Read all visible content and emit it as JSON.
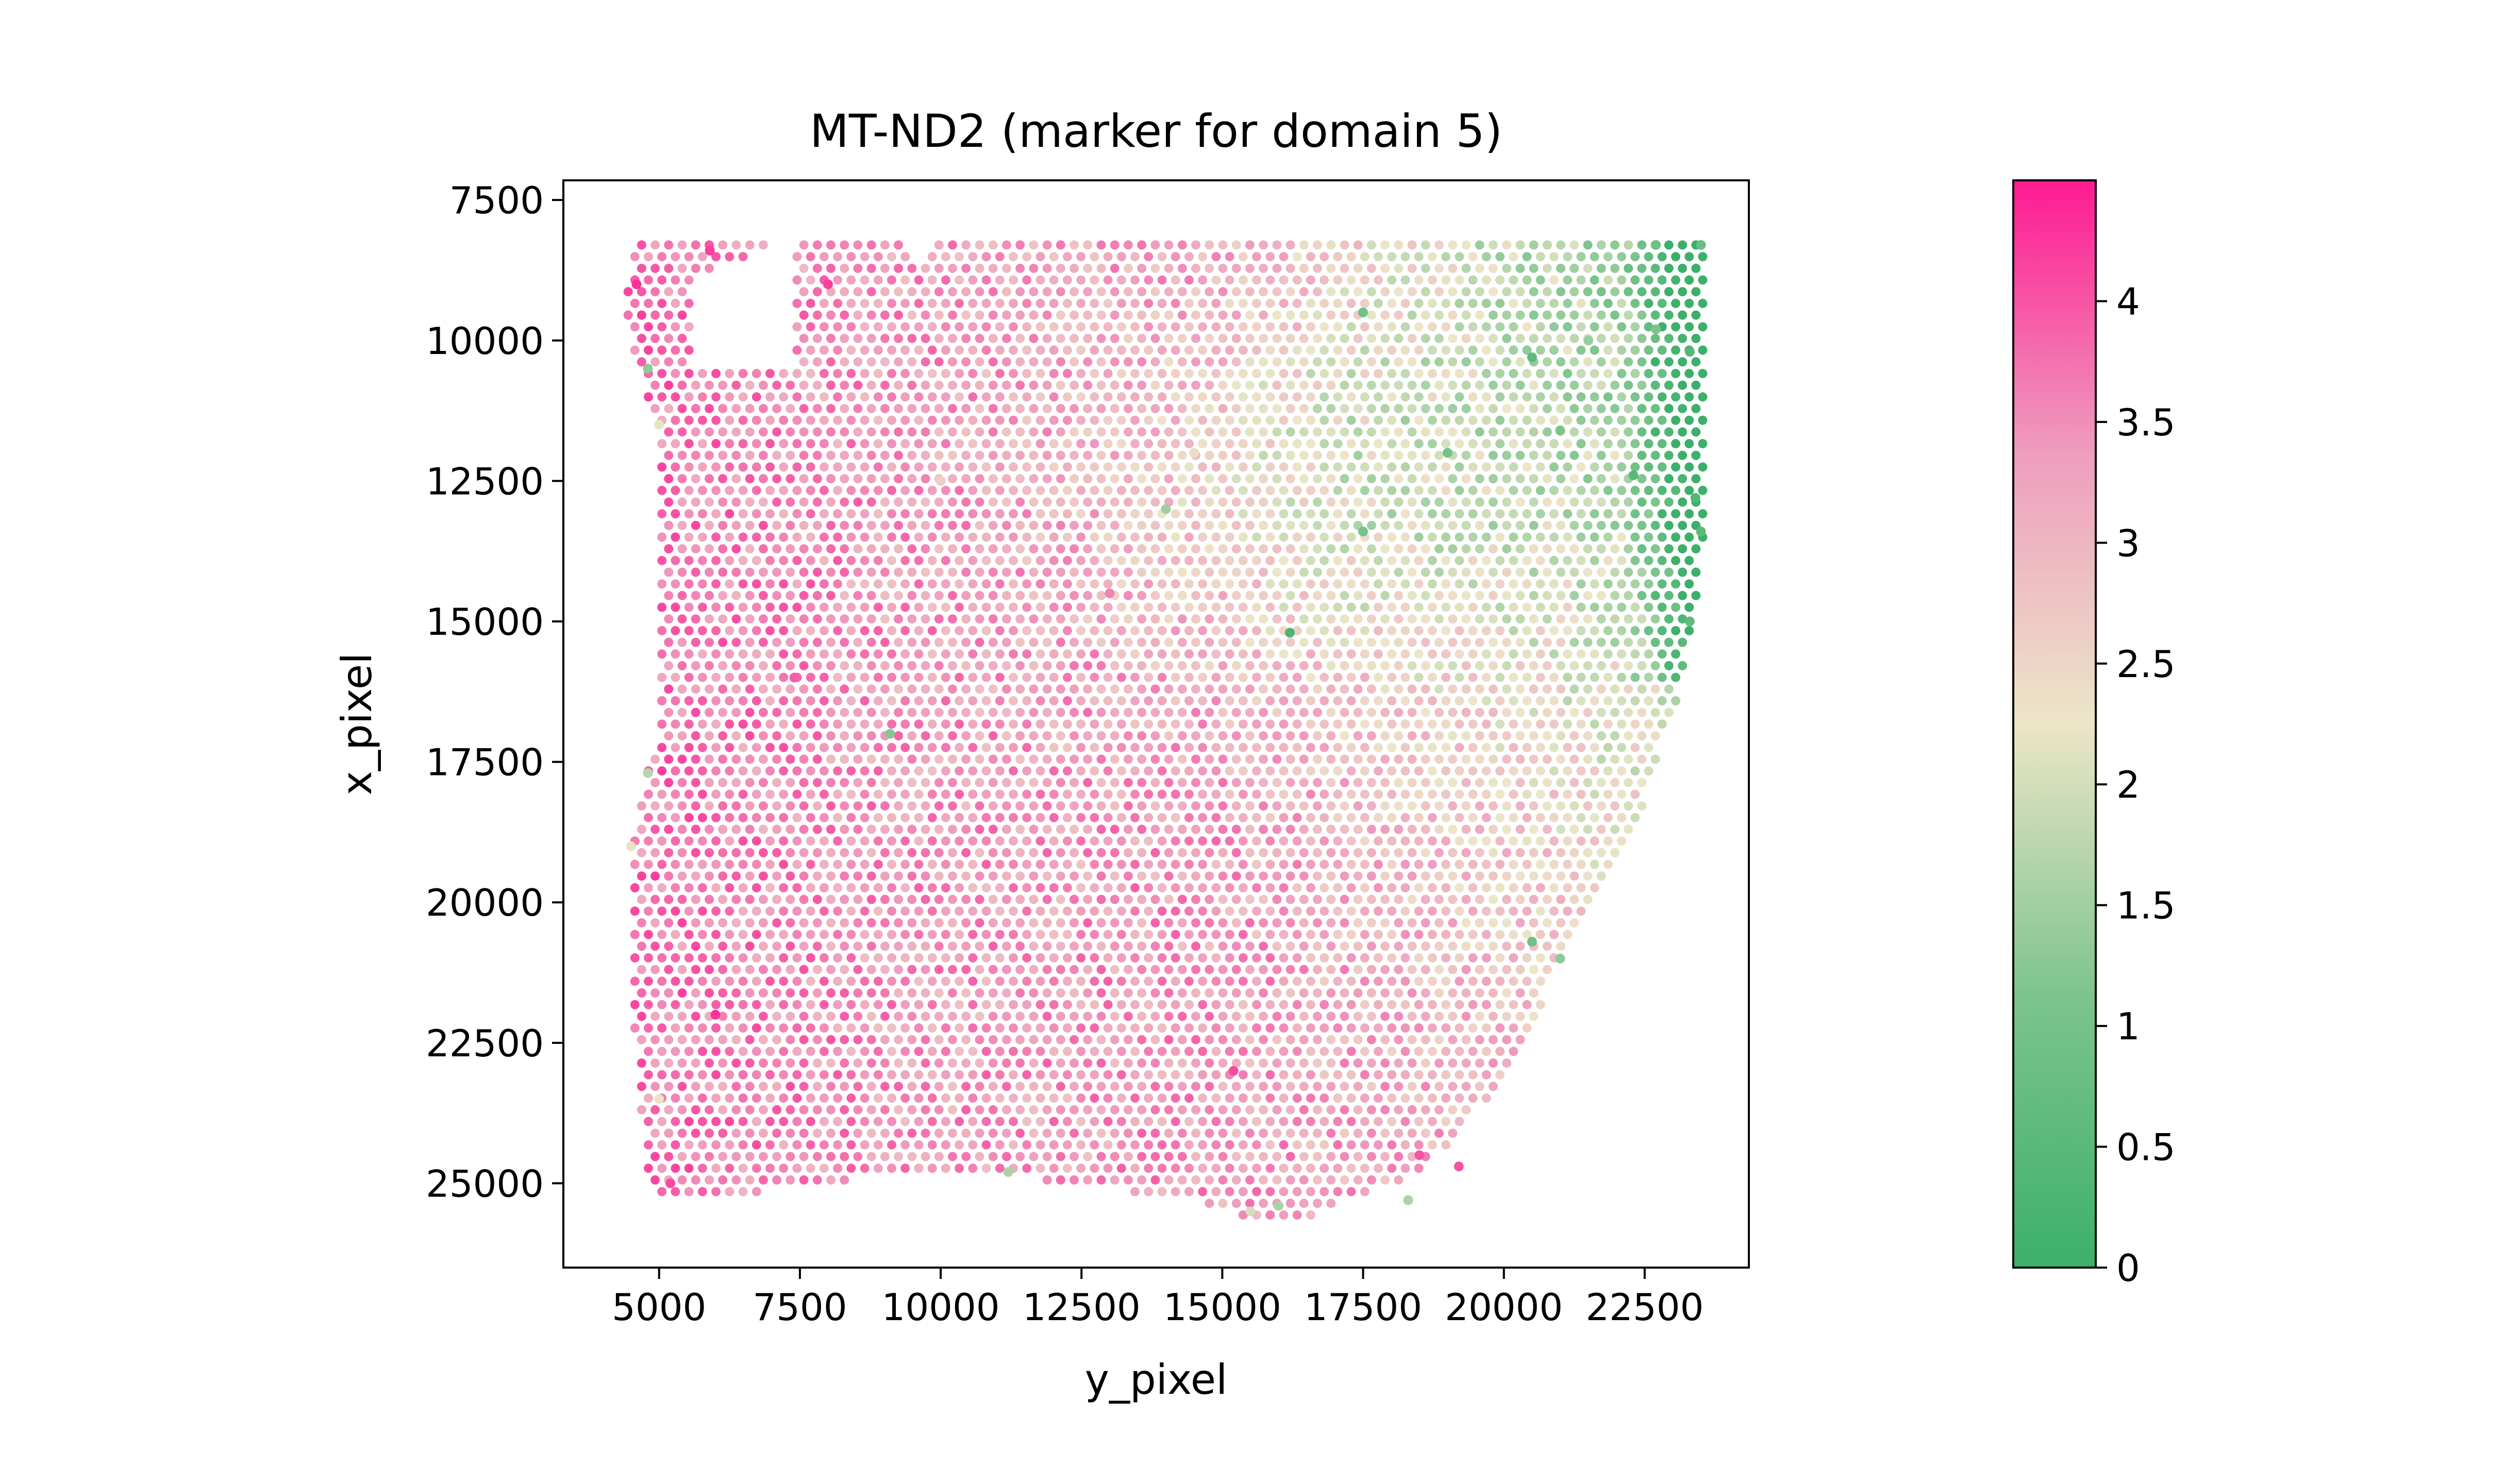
{
  "chart_data": {
    "type": "scatter",
    "title": "MT-ND2 (marker for domain 5)",
    "xlabel": "y_pixel",
    "ylabel": "x_pixel",
    "xlim": [
      3300,
      24350
    ],
    "ylim": [
      26500,
      7150
    ],
    "y_inverted": true,
    "xticks": [
      5000,
      7500,
      10000,
      12500,
      15000,
      17500,
      20000,
      22500
    ],
    "xtick_labels": [
      "5000",
      "7500",
      "10000",
      "12500",
      "15000",
      "17500",
      "20000",
      "22500"
    ],
    "yticks": [
      7500,
      10000,
      12500,
      15000,
      17500,
      20000,
      22500,
      25000
    ],
    "ytick_labels": [
      "7500",
      "10000",
      "12500",
      "15000",
      "17500",
      "20000",
      "22500",
      "25000"
    ],
    "grid": false,
    "colorbar": {
      "min": 0,
      "max": 4.5,
      "ticks": [
        0,
        0.5,
        1,
        1.5,
        2,
        2.5,
        3,
        3.5,
        4
      ],
      "tick_labels": [
        "0",
        "0.5",
        "1",
        "1.5",
        "2",
        "2.5",
        "3",
        "3.5",
        "4"
      ],
      "colors": [
        "#3CB06A",
        "#7DC48E",
        "#ECE6C8",
        "#EE9DBE",
        "#FF1A92"
      ]
    },
    "spot_grid": {
      "y_start": 4450,
      "y_end": 23550,
      "x_start": 8300,
      "x_end": 25600,
      "pitch": 240,
      "row_step": 208
    },
    "points": [
      {
        "x": 4600,
        "y": 9000,
        "value": 4.3
      },
      {
        "x": 4800,
        "y": 10500,
        "value": 1.3
      },
      {
        "x": 5000,
        "y": 11500,
        "value": 2.2
      },
      {
        "x": 5900,
        "y": 8400,
        "value": 4.2
      },
      {
        "x": 8000,
        "y": 9000,
        "value": 4.2
      },
      {
        "x": 4800,
        "y": 17700,
        "value": 1.7
      },
      {
        "x": 4500,
        "y": 19000,
        "value": 2.2
      },
      {
        "x": 5000,
        "y": 23500,
        "value": 2.3
      },
      {
        "x": 5200,
        "y": 25000,
        "value": 4.1
      },
      {
        "x": 7400,
        "y": 16000,
        "value": 3.9
      },
      {
        "x": 9100,
        "y": 17000,
        "value": 1.2
      },
      {
        "x": 11200,
        "y": 24800,
        "value": 1.6
      },
      {
        "x": 13000,
        "y": 14500,
        "value": 3.6
      },
      {
        "x": 14000,
        "y": 13000,
        "value": 1.5
      },
      {
        "x": 16200,
        "y": 15200,
        "value": 0.3
      },
      {
        "x": 17500,
        "y": 13400,
        "value": 1.0
      },
      {
        "x": 17500,
        "y": 9500,
        "value": 0.9
      },
      {
        "x": 19000,
        "y": 12000,
        "value": 1.0
      },
      {
        "x": 20500,
        "y": 10300,
        "value": 0.6
      },
      {
        "x": 21000,
        "y": 11600,
        "value": 1.1
      },
      {
        "x": 21500,
        "y": 10000,
        "value": 1.4
      },
      {
        "x": 22300,
        "y": 12400,
        "value": 0.5
      },
      {
        "x": 22700,
        "y": 9800,
        "value": 1.1
      },
      {
        "x": 23300,
        "y": 10200,
        "value": 0.4
      },
      {
        "x": 23400,
        "y": 12800,
        "value": 0.4
      },
      {
        "x": 23500,
        "y": 13400,
        "value": 0.5
      },
      {
        "x": 23300,
        "y": 15000,
        "value": 0.6
      },
      {
        "x": 23500,
        "y": 8300,
        "value": 0.8
      },
      {
        "x": 22700,
        "y": 8300,
        "value": 0.9
      },
      {
        "x": 20500,
        "y": 20700,
        "value": 0.9
      },
      {
        "x": 21000,
        "y": 21000,
        "value": 1.3
      },
      {
        "x": 15500,
        "y": 25500,
        "value": 2.0
      },
      {
        "x": 16000,
        "y": 25400,
        "value": 1.6
      },
      {
        "x": 18300,
        "y": 25300,
        "value": 1.6
      },
      {
        "x": 18500,
        "y": 24500,
        "value": 4.0
      },
      {
        "x": 19200,
        "y": 24700,
        "value": 4.0
      },
      {
        "x": 15200,
        "y": 23000,
        "value": 4.1
      },
      {
        "x": 6000,
        "y": 22000,
        "value": 4.3
      },
      {
        "x": 10000,
        "y": 12500,
        "value": 2.6
      },
      {
        "x": 14500,
        "y": 12000,
        "value": 2.4
      }
    ]
  }
}
